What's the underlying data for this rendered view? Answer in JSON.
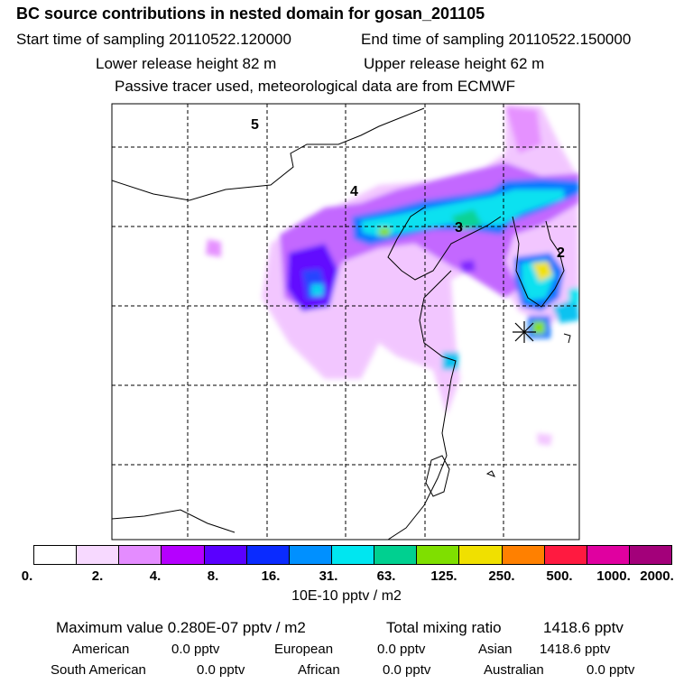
{
  "header": {
    "title": "BC  source contributions in nested domain for gosan_201105",
    "start_label": "Start time of sampling 20110522.120000",
    "end_label": "End time of sampling 20110522.150000",
    "lower_label": "Lower release height   82 m",
    "upper_label": "Upper release height   62 m",
    "tracer_note": "Passive tracer used, meteorological data are from ECMWF"
  },
  "map": {
    "grid": true,
    "markers": [
      "5",
      "4",
      "3",
      "2"
    ],
    "receptor_symbol": "star-marker"
  },
  "colorbar": {
    "colors": [
      "#ffffff",
      "#f7d9ff",
      "#e48cff",
      "#b500ff",
      "#5a00ff",
      "#0a2bff",
      "#0090ff",
      "#00e6f0",
      "#00d090",
      "#7fdf00",
      "#f0e000",
      "#ff8000",
      "#ff1a40",
      "#e000a0",
      "#a3007a"
    ],
    "ticks": [
      "0.",
      "2.",
      "4.",
      "8.",
      "16.",
      "31.",
      "63.",
      "125.",
      "250.",
      "500.",
      "1000.",
      "2000."
    ],
    "unit": "10E-10 pptv / m2"
  },
  "stats": {
    "max_label": "Maximum value  0.280E-07 pptv / m2",
    "total_label": "Total mixing ratio",
    "total_value": "1418.6 pptv",
    "american_label": "American",
    "american_value": "0.0 pptv",
    "european_label": "European",
    "european_value": "0.0 pptv",
    "asian_label": "Asian",
    "asian_value": "1418.6 pptv",
    "south_american_label": "South American",
    "south_american_value": "0.0 pptv",
    "african_label": "African",
    "african_value": "0.0 pptv",
    "australian_label": "Australian",
    "australian_value": "0.0 pptv"
  }
}
